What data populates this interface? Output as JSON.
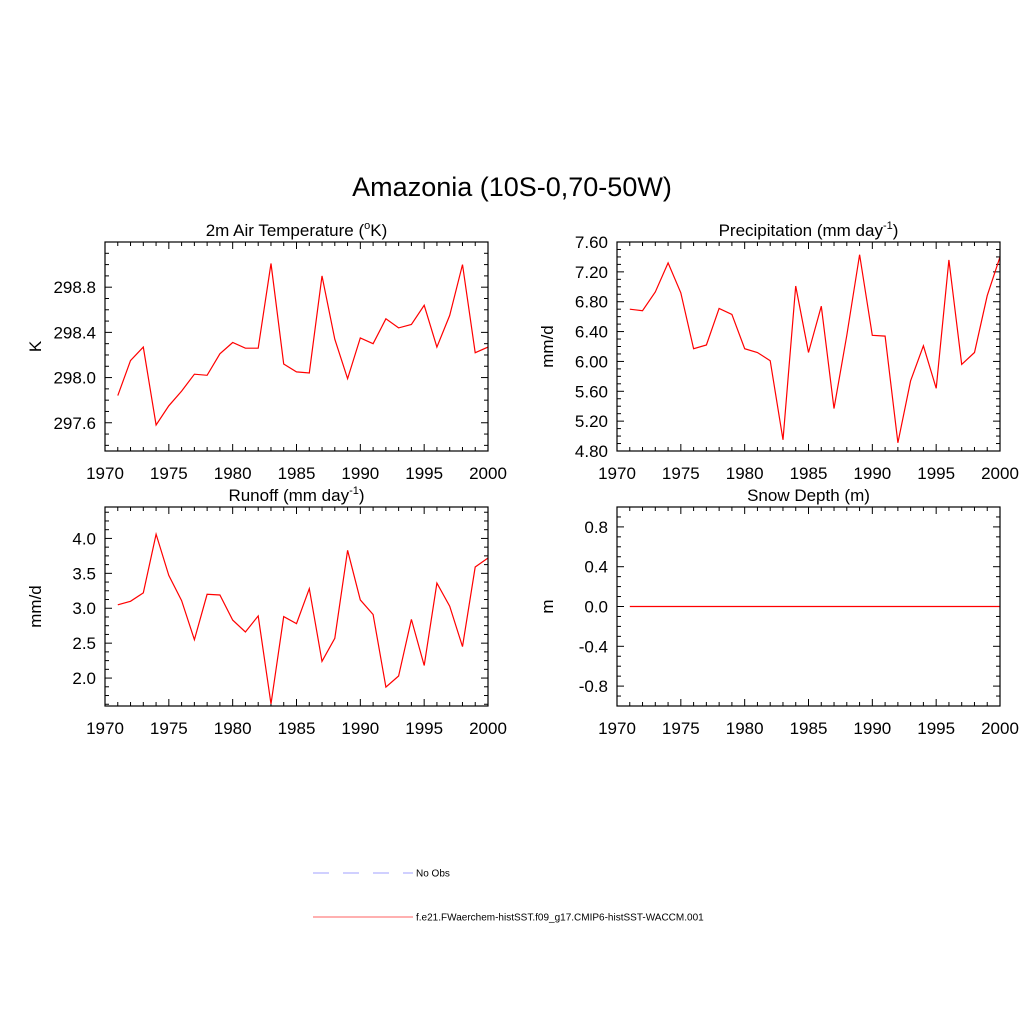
{
  "figure": {
    "title": "Amazonia (10S-0,70-50W)"
  },
  "chart_data": [
    {
      "type": "line",
      "title": "2m Air Temperature (",
      "title_sup": "o",
      "title_end": "K)",
      "xlabel": "",
      "ylabel": "K",
      "xlim": [
        1970,
        2000
      ],
      "ylim": [
        297.35,
        299.2
      ],
      "xticks": [
        "1970",
        "1975",
        "1980",
        "1985",
        "1990",
        "1995",
        "2000"
      ],
      "yticks": [
        "297.6",
        "298.0",
        "298.4",
        "298.8"
      ],
      "x": [
        1971,
        1972,
        1973,
        1974,
        1975,
        1976,
        1977,
        1978,
        1979,
        1980,
        1981,
        1982,
        1983,
        1984,
        1985,
        1986,
        1987,
        1988,
        1989,
        1990,
        1991,
        1992,
        1993,
        1994,
        1995,
        1996,
        1997,
        1998,
        1999,
        2000
      ],
      "series": [
        {
          "color": "#ff0000",
          "values": [
            297.84,
            298.15,
            298.27,
            297.58,
            297.75,
            297.88,
            298.03,
            298.02,
            298.21,
            298.31,
            298.26,
            298.26,
            299.01,
            298.12,
            298.05,
            298.04,
            298.9,
            298.34,
            297.99,
            298.35,
            298.3,
            298.52,
            298.44,
            298.47,
            298.64,
            298.27,
            298.55,
            299.0,
            298.22,
            298.27
          ]
        }
      ]
    },
    {
      "type": "line",
      "title": "Precipitation (mm day",
      "title_sup": "-1",
      "title_end": ")",
      "xlabel": "",
      "ylabel": "mm/d",
      "xlim": [
        1970,
        2000
      ],
      "ylim": [
        4.8,
        7.6
      ],
      "xticks": [
        "1970",
        "1975",
        "1980",
        "1985",
        "1990",
        "1995",
        "2000"
      ],
      "yticks": [
        "4.80",
        "5.20",
        "5.60",
        "6.00",
        "6.40",
        "6.80",
        "7.20",
        "7.60"
      ],
      "x": [
        1971,
        1972,
        1973,
        1974,
        1975,
        1976,
        1977,
        1978,
        1979,
        1980,
        1981,
        1982,
        1983,
        1984,
        1985,
        1986,
        1987,
        1988,
        1989,
        1990,
        1991,
        1992,
        1993,
        1994,
        1995,
        1996,
        1997,
        1998,
        1999,
        2000
      ],
      "series": [
        {
          "color": "#ff0000",
          "values": [
            6.7,
            6.68,
            6.93,
            7.32,
            6.92,
            6.17,
            6.22,
            6.71,
            6.63,
            6.17,
            6.12,
            6.01,
            4.95,
            7.01,
            6.12,
            6.74,
            5.37,
            6.35,
            7.43,
            6.35,
            6.34,
            4.91,
            5.74,
            6.21,
            5.64,
            7.36,
            5.96,
            6.12,
            6.88,
            7.4
          ]
        }
      ]
    },
    {
      "type": "line",
      "title": "Runoff (mm day",
      "title_sup": "-1",
      "title_end": ")",
      "xlabel": "",
      "ylabel": "mm/d",
      "xlim": [
        1970,
        2000
      ],
      "ylim": [
        1.6,
        4.45
      ],
      "xticks": [
        "1970",
        "1975",
        "1980",
        "1985",
        "1990",
        "1995",
        "2000"
      ],
      "yticks": [
        "2.0",
        "2.5",
        "3.0",
        "3.5",
        "4.0"
      ],
      "x": [
        1971,
        1972,
        1973,
        1974,
        1975,
        1976,
        1977,
        1978,
        1979,
        1980,
        1981,
        1982,
        1983,
        1984,
        1985,
        1986,
        1987,
        1988,
        1989,
        1990,
        1991,
        1992,
        1993,
        1994,
        1995,
        1996,
        1997,
        1998,
        1999,
        2000
      ],
      "series": [
        {
          "color": "#ff0000",
          "values": [
            3.05,
            3.1,
            3.22,
            4.06,
            3.47,
            3.11,
            2.55,
            3.2,
            3.19,
            2.83,
            2.66,
            2.89,
            1.63,
            2.88,
            2.78,
            3.28,
            2.24,
            2.57,
            3.83,
            3.12,
            2.91,
            1.87,
            2.03,
            2.84,
            2.18,
            3.36,
            3.03,
            2.45,
            3.59,
            3.72
          ]
        }
      ]
    },
    {
      "type": "line",
      "title": "Snow Depth (m)",
      "title_sup": "",
      "title_end": "",
      "xlabel": "",
      "ylabel": "m",
      "xlim": [
        1970,
        2000
      ],
      "ylim": [
        -1.0,
        1.0
      ],
      "xticks": [
        "1970",
        "1975",
        "1980",
        "1985",
        "1990",
        "1995",
        "2000"
      ],
      "yticks": [
        "-0.8",
        "-0.4",
        "0.0",
        "0.4",
        "0.8"
      ],
      "x": [
        1971,
        1972,
        1973,
        1974,
        1975,
        1976,
        1977,
        1978,
        1979,
        1980,
        1981,
        1982,
        1983,
        1984,
        1985,
        1986,
        1987,
        1988,
        1989,
        1990,
        1991,
        1992,
        1993,
        1994,
        1995,
        1996,
        1997,
        1998,
        1999,
        2000
      ],
      "series": [
        {
          "color": "#ff0000",
          "values": [
            0,
            0,
            0,
            0,
            0,
            0,
            0,
            0,
            0,
            0,
            0,
            0,
            0,
            0,
            0,
            0,
            0,
            0,
            0,
            0,
            0,
            0,
            0,
            0,
            0,
            0,
            0,
            0,
            0,
            0
          ]
        }
      ]
    }
  ],
  "legend": {
    "items": [
      {
        "label": "No Obs",
        "color": "#b3b3ff",
        "dashed": true
      },
      {
        "label": "f.e21.FWaerchem-histSST.f09_g17.CMIP6-histSST-WACCM.001",
        "color": "#ff8080",
        "dashed": false
      }
    ]
  }
}
